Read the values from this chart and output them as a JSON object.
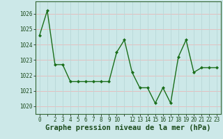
{
  "x": [
    0,
    1,
    2,
    3,
    4,
    5,
    6,
    7,
    8,
    9,
    10,
    11,
    12,
    13,
    14,
    15,
    16,
    17,
    18,
    19,
    20,
    21,
    22,
    23
  ],
  "y": [
    1024.6,
    1026.2,
    1022.7,
    1022.7,
    1021.6,
    1021.6,
    1021.6,
    1021.6,
    1021.6,
    1021.6,
    1023.5,
    1024.3,
    1022.2,
    1021.2,
    1021.2,
    1020.2,
    1021.2,
    1020.2,
    1023.2,
    1024.3,
    1022.2,
    1022.5,
    1022.5,
    1022.5
  ],
  "line_color": "#1a6e1a",
  "marker": "D",
  "markersize": 2.0,
  "bg_color": "#cce8e8",
  "grid_h_color": "#e8b8b8",
  "grid_v_color": "#b8d8d8",
  "xlabel": "Graphe pression niveau de la mer (hPa)",
  "xlabel_fontsize": 7.5,
  "ylabel_ticks": [
    1020,
    1021,
    1022,
    1023,
    1024,
    1025,
    1026
  ],
  "xlim": [
    -0.5,
    23.5
  ],
  "ylim": [
    1019.5,
    1026.8
  ],
  "linewidth": 1.0,
  "tick_fontsize": 5.5
}
